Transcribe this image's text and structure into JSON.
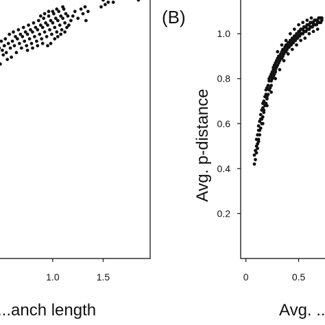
{
  "chart_data": [
    {
      "panel": "A",
      "type": "scatter",
      "panel_label": "",
      "xlabel": "...anch length",
      "ylabel": "",
      "xlim": [
        0.45,
        2.0
      ],
      "ylim": [
        0.0,
        1.13
      ],
      "xticks": [
        {
          "value": 1.0,
          "label": "1.0"
        },
        {
          "value": 1.5,
          "label": "1.5"
        }
      ],
      "yticks": [],
      "grid": false,
      "marker_color": "#111111",
      "points": [
        [
          0.46,
          0.87
        ],
        [
          0.47,
          0.92
        ],
        [
          0.48,
          0.85
        ],
        [
          0.49,
          0.95
        ],
        [
          0.5,
          0.91
        ],
        [
          0.51,
          0.89
        ],
        [
          0.52,
          0.93
        ],
        [
          0.53,
          0.96
        ],
        [
          0.54,
          0.9
        ],
        [
          0.55,
          0.87
        ],
        [
          0.56,
          0.94
        ],
        [
          0.57,
          0.98
        ],
        [
          0.58,
          0.92
        ],
        [
          0.59,
          0.88
        ],
        [
          0.6,
          0.95
        ],
        [
          0.61,
          0.99
        ],
        [
          0.62,
          0.93
        ],
        [
          0.63,
          0.97
        ],
        [
          0.64,
          0.9
        ],
        [
          0.65,
          0.96
        ],
        [
          0.66,
          1.0
        ],
        [
          0.67,
          0.94
        ],
        [
          0.68,
          0.98
        ],
        [
          0.69,
          0.92
        ],
        [
          0.7,
          0.97
        ],
        [
          0.71,
          1.01
        ],
        [
          0.72,
          0.95
        ],
        [
          0.73,
          0.99
        ],
        [
          0.74,
          0.93
        ],
        [
          0.75,
          0.98
        ],
        [
          0.76,
          1.02
        ],
        [
          0.77,
          0.96
        ],
        [
          0.78,
          1.0
        ],
        [
          0.79,
          0.94
        ],
        [
          0.8,
          0.99
        ],
        [
          0.81,
          1.03
        ],
        [
          0.82,
          0.97
        ],
        [
          0.83,
          1.01
        ],
        [
          0.84,
          0.95
        ],
        [
          0.85,
          1.0
        ],
        [
          0.86,
          1.04
        ],
        [
          0.87,
          0.98
        ],
        [
          0.88,
          1.02
        ],
        [
          0.89,
          0.96
        ],
        [
          0.9,
          1.01
        ],
        [
          0.91,
          1.05
        ],
        [
          0.92,
          0.99
        ],
        [
          0.93,
          1.03
        ],
        [
          0.94,
          0.97
        ],
        [
          0.95,
          1.02
        ],
        [
          0.96,
          1.06
        ],
        [
          0.97,
          1.0
        ],
        [
          0.98,
          1.04
        ],
        [
          0.99,
          0.98
        ],
        [
          1.0,
          1.03
        ],
        [
          1.01,
          1.07
        ],
        [
          1.02,
          1.01
        ],
        [
          1.03,
          1.05
        ],
        [
          1.04,
          0.99
        ],
        [
          1.05,
          1.04
        ],
        [
          1.06,
          1.08
        ],
        [
          1.07,
          1.02
        ],
        [
          1.08,
          1.06
        ],
        [
          1.09,
          1.0
        ],
        [
          1.1,
          1.05
        ],
        [
          1.11,
          1.09
        ],
        [
          1.12,
          1.03
        ],
        [
          1.13,
          1.07
        ],
        [
          1.14,
          1.01
        ],
        [
          1.15,
          1.06
        ],
        [
          0.95,
          0.93
        ],
        [
          0.98,
          0.94
        ],
        [
          1.02,
          0.96
        ],
        [
          1.05,
          0.97
        ],
        [
          1.08,
          0.98
        ],
        [
          1.12,
          0.99
        ],
        [
          0.9,
          0.94
        ],
        [
          0.85,
          0.93
        ],
        [
          0.8,
          0.92
        ],
        [
          0.75,
          0.91
        ],
        [
          1.0,
          1.08
        ],
        [
          1.04,
          1.09
        ],
        [
          1.1,
          1.1
        ],
        [
          0.88,
          1.06
        ],
        [
          0.92,
          1.07
        ],
        [
          0.96,
          1.08
        ],
        [
          1.16,
          1.02
        ],
        [
          1.18,
          1.04
        ],
        [
          1.2,
          1.06
        ],
        [
          1.22,
          1.08
        ],
        [
          1.25,
          1.05
        ],
        [
          1.28,
          1.09
        ],
        [
          1.3,
          1.07
        ],
        [
          1.32,
          1.1
        ],
        [
          1.35,
          1.08
        ],
        [
          1.33,
          1.04
        ],
        [
          1.5,
          1.13
        ],
        [
          1.52,
          1.11
        ],
        [
          1.55,
          1.12
        ],
        [
          1.58,
          1.14
        ],
        [
          1.6,
          1.12
        ],
        [
          1.48,
          1.1
        ],
        [
          1.75,
          1.15
        ],
        [
          1.85,
          1.13
        ]
      ]
    },
    {
      "panel": "B",
      "type": "scatter",
      "panel_label": "(B)",
      "xlabel": "Avg. ...",
      "ylabel": "Avg. p-distance",
      "xlim": [
        -0.05,
        0.75
      ],
      "ylim": [
        0.0,
        1.15
      ],
      "xticks": [
        {
          "value": 0.0,
          "label": "0"
        },
        {
          "value": 0.5,
          "label": "0.5"
        }
      ],
      "yticks": [
        {
          "value": 0.2,
          "label": "0.2"
        },
        {
          "value": 0.4,
          "label": "0.4"
        },
        {
          "value": 0.6,
          "label": "0.6"
        },
        {
          "value": 0.8,
          "label": "0.8"
        },
        {
          "value": 1.0,
          "label": "1.0"
        }
      ],
      "grid": false,
      "marker_color": "#111111",
      "points": [
        [
          0.08,
          0.42
        ],
        [
          0.08,
          0.46
        ],
        [
          0.09,
          0.48
        ],
        [
          0.09,
          0.44
        ],
        [
          0.1,
          0.5
        ],
        [
          0.1,
          0.47
        ],
        [
          0.1,
          0.53
        ],
        [
          0.11,
          0.49
        ],
        [
          0.11,
          0.55
        ],
        [
          0.11,
          0.51
        ],
        [
          0.12,
          0.57
        ],
        [
          0.12,
          0.53
        ],
        [
          0.12,
          0.59
        ],
        [
          0.13,
          0.55
        ],
        [
          0.13,
          0.61
        ],
        [
          0.13,
          0.57
        ],
        [
          0.14,
          0.62
        ],
        [
          0.14,
          0.58
        ],
        [
          0.14,
          0.64
        ],
        [
          0.15,
          0.6
        ],
        [
          0.15,
          0.66
        ],
        [
          0.15,
          0.62
        ],
        [
          0.16,
          0.67
        ],
        [
          0.16,
          0.63
        ],
        [
          0.16,
          0.69
        ],
        [
          0.17,
          0.65
        ],
        [
          0.17,
          0.7
        ],
        [
          0.17,
          0.66
        ],
        [
          0.18,
          0.72
        ],
        [
          0.18,
          0.68
        ],
        [
          0.19,
          0.73
        ],
        [
          0.19,
          0.69
        ],
        [
          0.19,
          0.75
        ],
        [
          0.2,
          0.71
        ],
        [
          0.2,
          0.76
        ],
        [
          0.2,
          0.72
        ],
        [
          0.21,
          0.77
        ],
        [
          0.21,
          0.73
        ],
        [
          0.22,
          0.79
        ],
        [
          0.22,
          0.75
        ],
        [
          0.22,
          0.8
        ],
        [
          0.23,
          0.76
        ],
        [
          0.23,
          0.81
        ],
        [
          0.24,
          0.77
        ],
        [
          0.24,
          0.82
        ],
        [
          0.24,
          0.79
        ],
        [
          0.25,
          0.83
        ],
        [
          0.25,
          0.8
        ],
        [
          0.26,
          0.84
        ],
        [
          0.26,
          0.81
        ],
        [
          0.26,
          0.85
        ],
        [
          0.27,
          0.82
        ],
        [
          0.27,
          0.86
        ],
        [
          0.28,
          0.83
        ],
        [
          0.28,
          0.87
        ],
        [
          0.28,
          0.84
        ],
        [
          0.29,
          0.88
        ],
        [
          0.29,
          0.85
        ],
        [
          0.3,
          0.89
        ],
        [
          0.3,
          0.86
        ],
        [
          0.31,
          0.9
        ],
        [
          0.31,
          0.87
        ],
        [
          0.32,
          0.9
        ],
        [
          0.32,
          0.88
        ],
        [
          0.33,
          0.91
        ],
        [
          0.33,
          0.89
        ],
        [
          0.34,
          0.92
        ],
        [
          0.34,
          0.89
        ],
        [
          0.35,
          0.93
        ],
        [
          0.35,
          0.9
        ],
        [
          0.36,
          0.93
        ],
        [
          0.36,
          0.91
        ],
        [
          0.37,
          0.94
        ],
        [
          0.37,
          0.92
        ],
        [
          0.38,
          0.95
        ],
        [
          0.38,
          0.92
        ],
        [
          0.39,
          0.95
        ],
        [
          0.39,
          0.93
        ],
        [
          0.4,
          0.96
        ],
        [
          0.4,
          0.94
        ],
        [
          0.41,
          0.96
        ],
        [
          0.41,
          0.94
        ],
        [
          0.42,
          0.97
        ],
        [
          0.42,
          0.95
        ],
        [
          0.43,
          0.97
        ],
        [
          0.43,
          0.95
        ],
        [
          0.44,
          0.98
        ],
        [
          0.44,
          0.96
        ],
        [
          0.45,
          0.98
        ],
        [
          0.45,
          0.96
        ],
        [
          0.46,
          0.99
        ],
        [
          0.46,
          0.97
        ],
        [
          0.47,
          0.99
        ],
        [
          0.47,
          0.97
        ],
        [
          0.48,
          1.0
        ],
        [
          0.48,
          0.98
        ],
        [
          0.49,
          1.0
        ],
        [
          0.49,
          0.98
        ],
        [
          0.5,
          1.01
        ],
        [
          0.5,
          0.99
        ],
        [
          0.51,
          1.01
        ],
        [
          0.51,
          0.99
        ],
        [
          0.52,
          1.02
        ],
        [
          0.52,
          1.0
        ],
        [
          0.53,
          1.02
        ],
        [
          0.53,
          1.0
        ],
        [
          0.54,
          1.02
        ],
        [
          0.54,
          1.0
        ],
        [
          0.55,
          1.03
        ],
        [
          0.55,
          1.01
        ],
        [
          0.56,
          1.03
        ],
        [
          0.56,
          1.01
        ],
        [
          0.57,
          1.03
        ],
        [
          0.57,
          1.01
        ],
        [
          0.58,
          1.04
        ],
        [
          0.58,
          1.02
        ],
        [
          0.59,
          1.04
        ],
        [
          0.59,
          1.02
        ],
        [
          0.6,
          1.04
        ],
        [
          0.6,
          1.02
        ],
        [
          0.61,
          1.05
        ],
        [
          0.61,
          1.03
        ],
        [
          0.62,
          1.05
        ],
        [
          0.62,
          1.03
        ],
        [
          0.63,
          1.05
        ],
        [
          0.63,
          1.03
        ],
        [
          0.64,
          1.05
        ],
        [
          0.64,
          1.04
        ],
        [
          0.65,
          1.06
        ],
        [
          0.65,
          1.04
        ],
        [
          0.66,
          1.06
        ],
        [
          0.66,
          1.04
        ],
        [
          0.67,
          1.06
        ],
        [
          0.67,
          1.04
        ],
        [
          0.68,
          1.06
        ],
        [
          0.68,
          1.05
        ],
        [
          0.69,
          1.07
        ],
        [
          0.69,
          1.05
        ],
        [
          0.7,
          1.07
        ],
        [
          0.7,
          1.05
        ],
        [
          0.71,
          1.07
        ],
        [
          0.71,
          1.05
        ],
        [
          0.72,
          1.07
        ],
        [
          0.72,
          1.06
        ],
        [
          0.12,
          0.52
        ],
        [
          0.16,
          0.6
        ],
        [
          0.2,
          0.68
        ],
        [
          0.24,
          0.74
        ],
        [
          0.28,
          0.8
        ],
        [
          0.32,
          0.84
        ],
        [
          0.36,
          0.88
        ],
        [
          0.4,
          0.91
        ],
        [
          0.44,
          0.93
        ],
        [
          0.48,
          0.95
        ],
        [
          0.52,
          0.97
        ],
        [
          0.56,
          0.98
        ],
        [
          0.6,
          1.0
        ],
        [
          0.64,
          1.01
        ],
        [
          0.68,
          1.02
        ],
        [
          0.3,
          0.92
        ],
        [
          0.34,
          0.95
        ],
        [
          0.38,
          0.97
        ],
        [
          0.42,
          1.0
        ],
        [
          0.46,
          1.02
        ],
        [
          0.5,
          1.04
        ],
        [
          0.54,
          1.05
        ],
        [
          0.58,
          1.06
        ],
        [
          0.62,
          1.07
        ]
      ]
    }
  ]
}
